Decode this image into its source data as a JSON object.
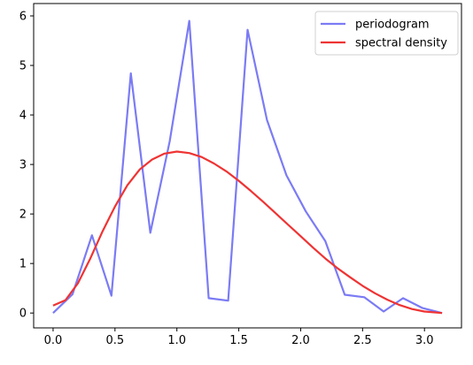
{
  "chart_data": {
    "type": "line",
    "title": "",
    "xlabel": "",
    "ylabel": "",
    "xlim": [
      -0.157,
      3.299
    ],
    "ylim": [
      -0.3,
      6.25
    ],
    "x_ticks": [
      0.0,
      0.5,
      1.0,
      1.5,
      2.0,
      2.5,
      3.0
    ],
    "x_tick_labels": [
      "0.0",
      "0.5",
      "1.0",
      "1.5",
      "2.0",
      "2.5",
      "3.0"
    ],
    "y_ticks": [
      0,
      1,
      2,
      3,
      4,
      5,
      6
    ],
    "y_tick_labels": [
      "0",
      "1",
      "2",
      "3",
      "4",
      "5",
      "6"
    ],
    "grid": false,
    "legend_position": "top-right",
    "series": [
      {
        "name": "periodogram",
        "color": "#7b7bf5",
        "x": [
          0.0,
          0.157,
          0.314,
          0.471,
          0.628,
          0.785,
          0.942,
          1.1,
          1.257,
          1.414,
          1.571,
          1.728,
          1.885,
          2.042,
          2.199,
          2.356,
          2.513,
          2.67,
          2.827,
          2.985,
          3.142
        ],
        "y": [
          0.0,
          0.38,
          1.57,
          0.35,
          4.84,
          1.62,
          3.47,
          5.9,
          0.3,
          0.25,
          5.72,
          3.9,
          2.78,
          2.05,
          1.45,
          0.37,
          0.32,
          0.03,
          0.3,
          0.1,
          0.0
        ]
      },
      {
        "name": "spectral density",
        "color": "#ef3333",
        "x": [
          0.0,
          0.1,
          0.2,
          0.3,
          0.4,
          0.5,
          0.6,
          0.7,
          0.8,
          0.9,
          1.0,
          1.1,
          1.2,
          1.3,
          1.4,
          1.5,
          1.6,
          1.7,
          1.8,
          1.9,
          2.0,
          2.1,
          2.2,
          2.3,
          2.4,
          2.5,
          2.6,
          2.7,
          2.8,
          2.9,
          3.0,
          3.142
        ],
        "y": [
          0.15,
          0.26,
          0.6,
          1.1,
          1.65,
          2.15,
          2.58,
          2.9,
          3.1,
          3.22,
          3.26,
          3.23,
          3.15,
          3.02,
          2.86,
          2.67,
          2.46,
          2.24,
          2.01,
          1.78,
          1.55,
          1.32,
          1.1,
          0.9,
          0.72,
          0.55,
          0.4,
          0.27,
          0.16,
          0.08,
          0.03,
          0.0
        ]
      }
    ]
  }
}
